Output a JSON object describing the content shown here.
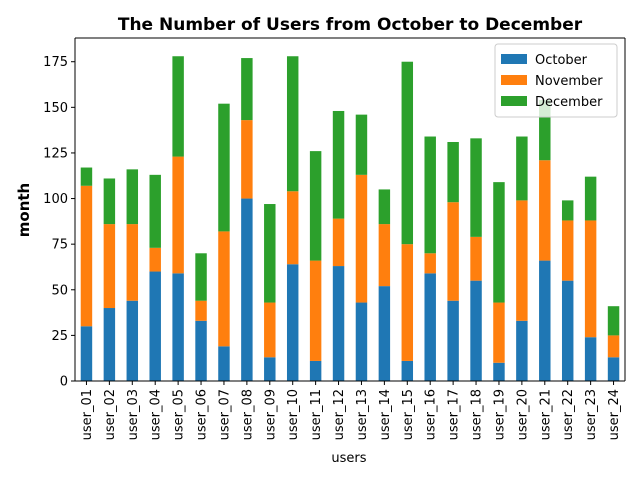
{
  "chart_data": {
    "type": "bar",
    "stacked": true,
    "title": "The Number of Users from October to December",
    "xlabel": "users",
    "ylabel": "month",
    "ylim": [
      0,
      188
    ],
    "yticks": [
      0,
      25,
      50,
      75,
      100,
      125,
      150,
      175
    ],
    "categories": [
      "user_01",
      "user_02",
      "user_03",
      "user_04",
      "user_05",
      "user_06",
      "user_07",
      "user_08",
      "user_09",
      "user_10",
      "user_11",
      "user_12",
      "user_13",
      "user_14",
      "user_15",
      "user_16",
      "user_17",
      "user_18",
      "user_19",
      "user_20",
      "user_21",
      "user_22",
      "user_23",
      "user_24"
    ],
    "series": [
      {
        "name": "October",
        "color": "#1f77b4",
        "values": [
          30,
          40,
          44,
          60,
          59,
          33,
          19,
          100,
          13,
          64,
          11,
          63,
          43,
          52,
          11,
          59,
          44,
          55,
          10,
          33,
          66,
          55,
          24,
          13
        ]
      },
      {
        "name": "November",
        "color": "#ff7f0e",
        "values": [
          77,
          46,
          42,
          13,
          64,
          11,
          63,
          43,
          30,
          40,
          55,
          26,
          70,
          34,
          64,
          11,
          54,
          24,
          33,
          66,
          55,
          33,
          64,
          12
        ]
      },
      {
        "name": "December",
        "color": "#2ca02c",
        "values": [
          10,
          25,
          30,
          40,
          55,
          26,
          70,
          34,
          54,
          74,
          60,
          59,
          33,
          19,
          100,
          64,
          33,
          54,
          66,
          35,
          33,
          11,
          24,
          16
        ]
      }
    ],
    "legend": {
      "location": "top-right",
      "entries": [
        "October",
        "November",
        "December"
      ]
    }
  }
}
